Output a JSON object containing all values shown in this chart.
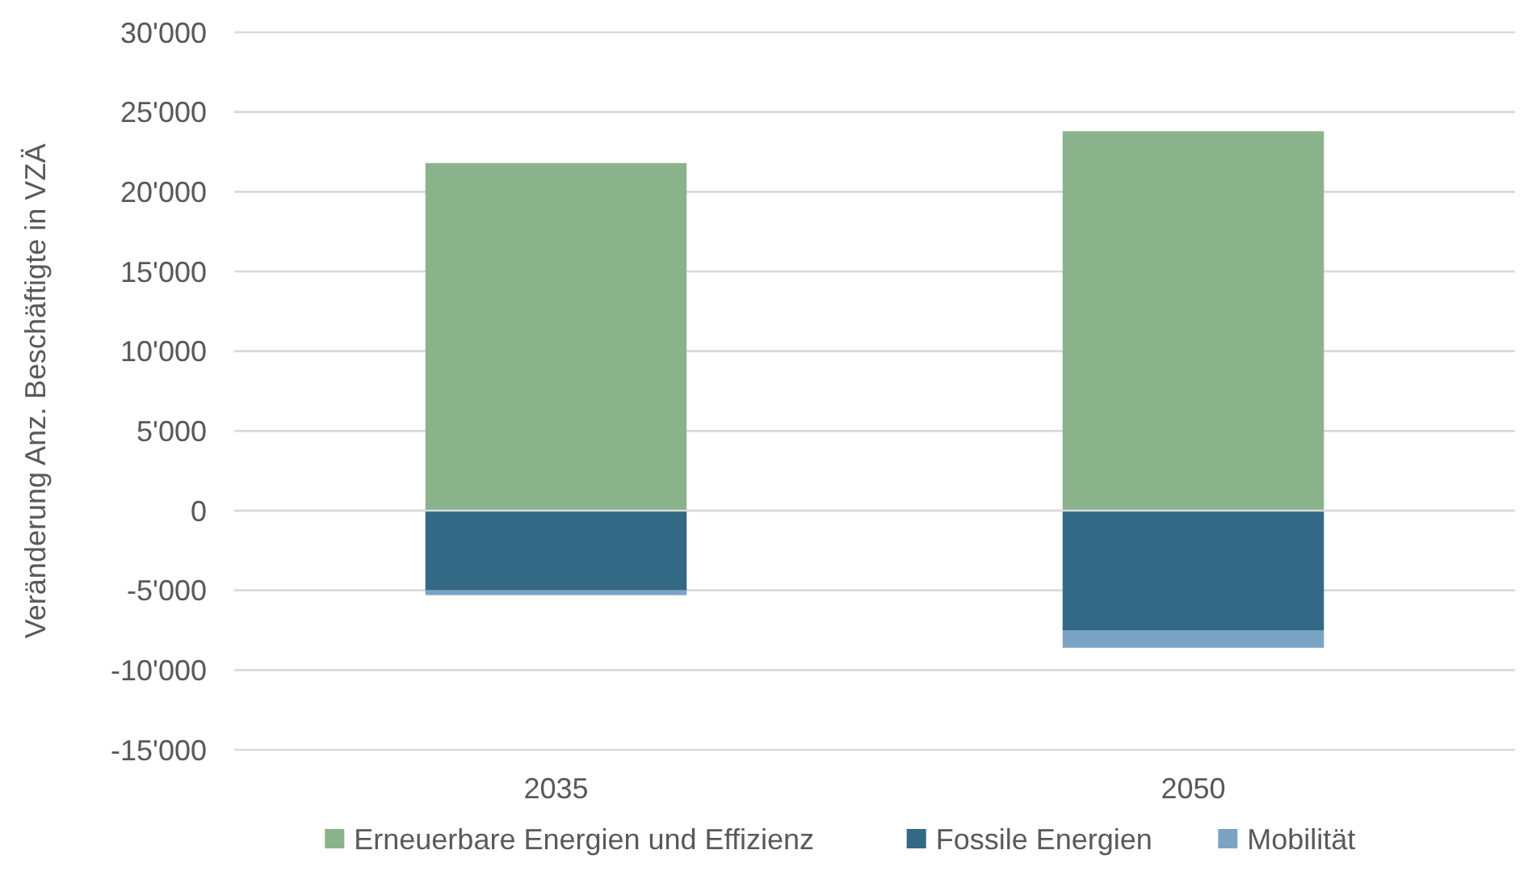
{
  "chart_data": {
    "type": "bar",
    "stacked": true,
    "ylabel": "Veränderung Anz. Beschäftigte in VZÄ",
    "categories": [
      "2035",
      "2050"
    ],
    "series": [
      {
        "name": "Erneuerbare Energien und Effizienz",
        "color": "#8bb38b",
        "values": [
          21800,
          23800
        ]
      },
      {
        "name": "Fossile Energien",
        "color": "#336984",
        "values": [
          -5000,
          -7500
        ]
      },
      {
        "name": "Mobilität",
        "color": "#7ba3c4",
        "values": [
          -300,
          -1100
        ]
      }
    ],
    "ylim": [
      -15000,
      30000
    ],
    "yticks": [
      {
        "value": -15000,
        "label": "-15'000"
      },
      {
        "value": -10000,
        "label": "-10'000"
      },
      {
        "value": -5000,
        "label": "-5'000"
      },
      0,
      {
        "value": 5000,
        "label": "5'000"
      },
      {
        "value": 10000,
        "label": "10'000"
      },
      {
        "value": 15000,
        "label": "15'000"
      },
      {
        "value": 20000,
        "label": "20'000"
      },
      {
        "value": 25000,
        "label": "25'000"
      },
      {
        "value": 30000,
        "label": "30'000"
      }
    ],
    "grid": "y",
    "legend": "bottom"
  }
}
